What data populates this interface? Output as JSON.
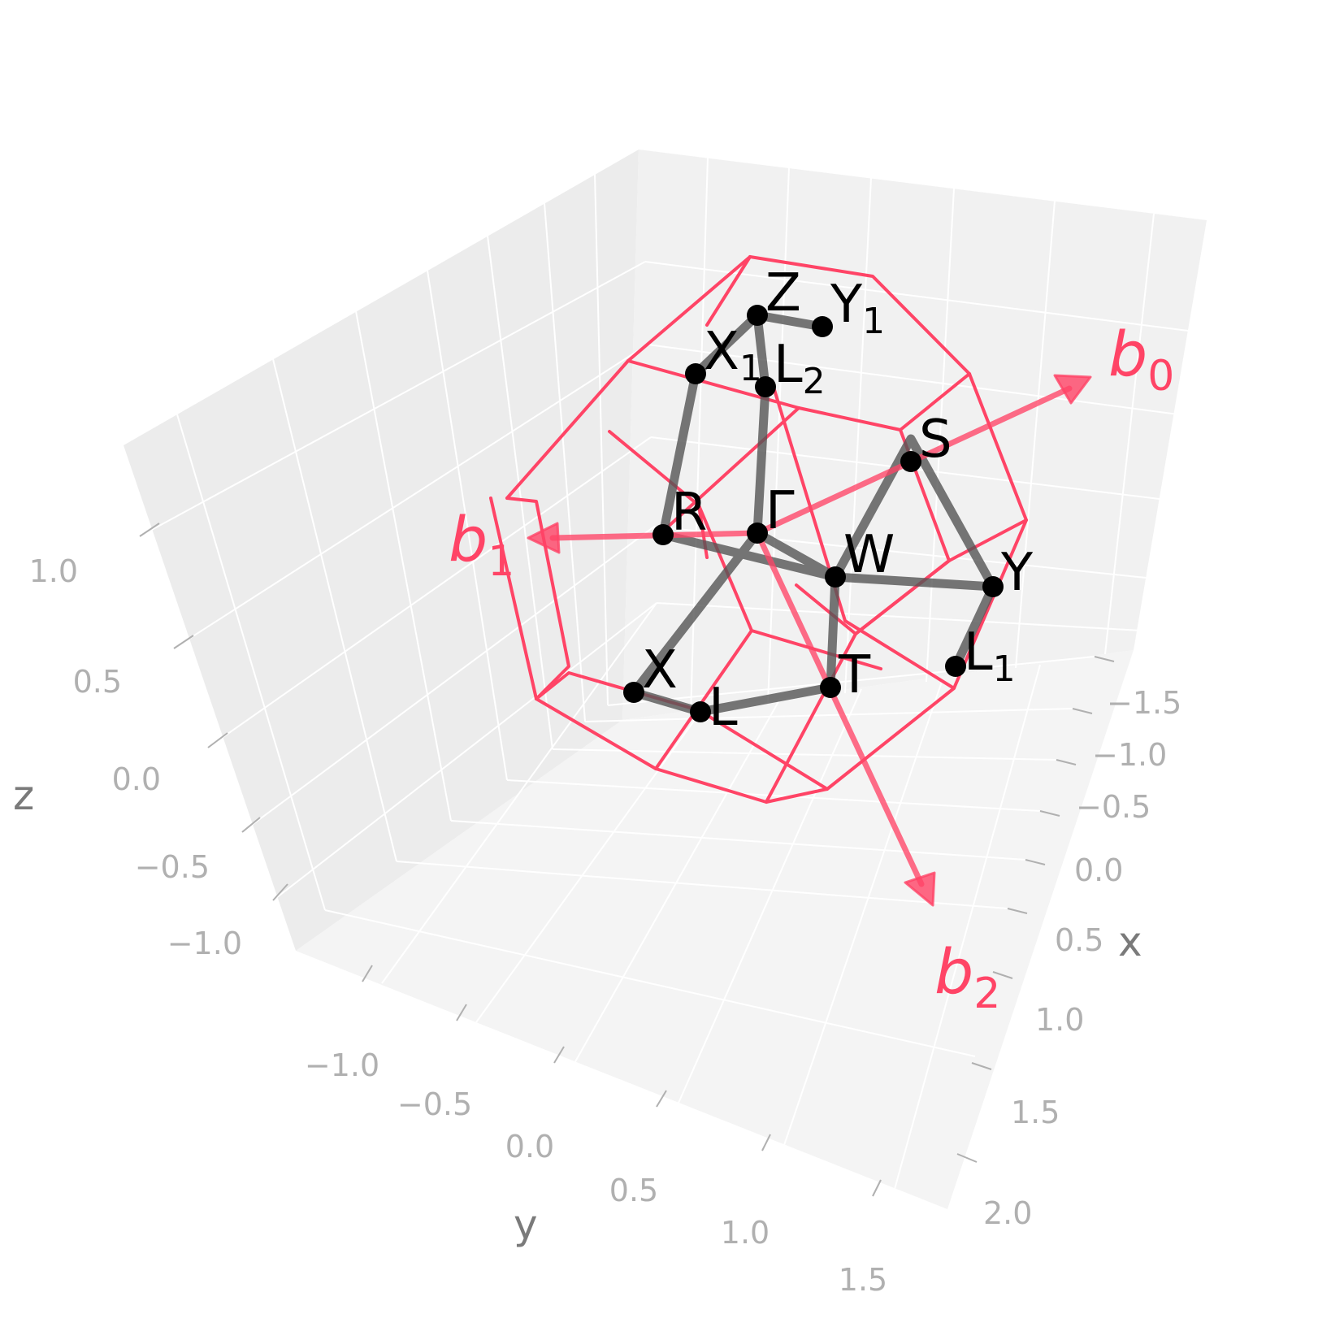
{
  "axes": {
    "x": {
      "label": "x",
      "ticks": [
        "−1.5",
        "−1.0",
        "−0.5",
        "0.0",
        "0.5",
        "1.0",
        "1.5",
        "2.0"
      ]
    },
    "y": {
      "label": "y",
      "ticks": [
        "−1.0",
        "−0.5",
        "0.0",
        "0.5",
        "1.0",
        "1.5"
      ]
    },
    "z": {
      "label": "z",
      "ticks": [
        "1.0",
        "0.5",
        "0.0",
        "−0.5",
        "−1.0"
      ]
    }
  },
  "reciprocal_vectors": [
    {
      "base": "b",
      "sub": "0"
    },
    {
      "base": "b",
      "sub": "1"
    },
    {
      "base": "b",
      "sub": "2"
    }
  ],
  "kpoints": [
    {
      "id": "Z",
      "base": "Z",
      "sub": ""
    },
    {
      "id": "Y1",
      "base": "Y",
      "sub": "1"
    },
    {
      "id": "X1",
      "base": "X",
      "sub": "1"
    },
    {
      "id": "L2",
      "base": "L",
      "sub": "2"
    },
    {
      "id": "S",
      "base": "S",
      "sub": ""
    },
    {
      "id": "R",
      "base": "R",
      "sub": ""
    },
    {
      "id": "Gamma",
      "base": "Γ",
      "sub": ""
    },
    {
      "id": "W",
      "base": "W",
      "sub": ""
    },
    {
      "id": "Y",
      "base": "Y",
      "sub": ""
    },
    {
      "id": "L1",
      "base": "L",
      "sub": "1"
    },
    {
      "id": "T",
      "base": "T",
      "sub": ""
    },
    {
      "id": "X",
      "base": "X",
      "sub": ""
    },
    {
      "id": "L",
      "base": "L",
      "sub": ""
    }
  ],
  "colors": {
    "zone_edge": "#ff4466",
    "path": "#555555",
    "pane": "#f2f2f2",
    "grid": "#ffffff",
    "tick_text": "#b0b0b0",
    "axis_label": "#7a7a7a"
  }
}
